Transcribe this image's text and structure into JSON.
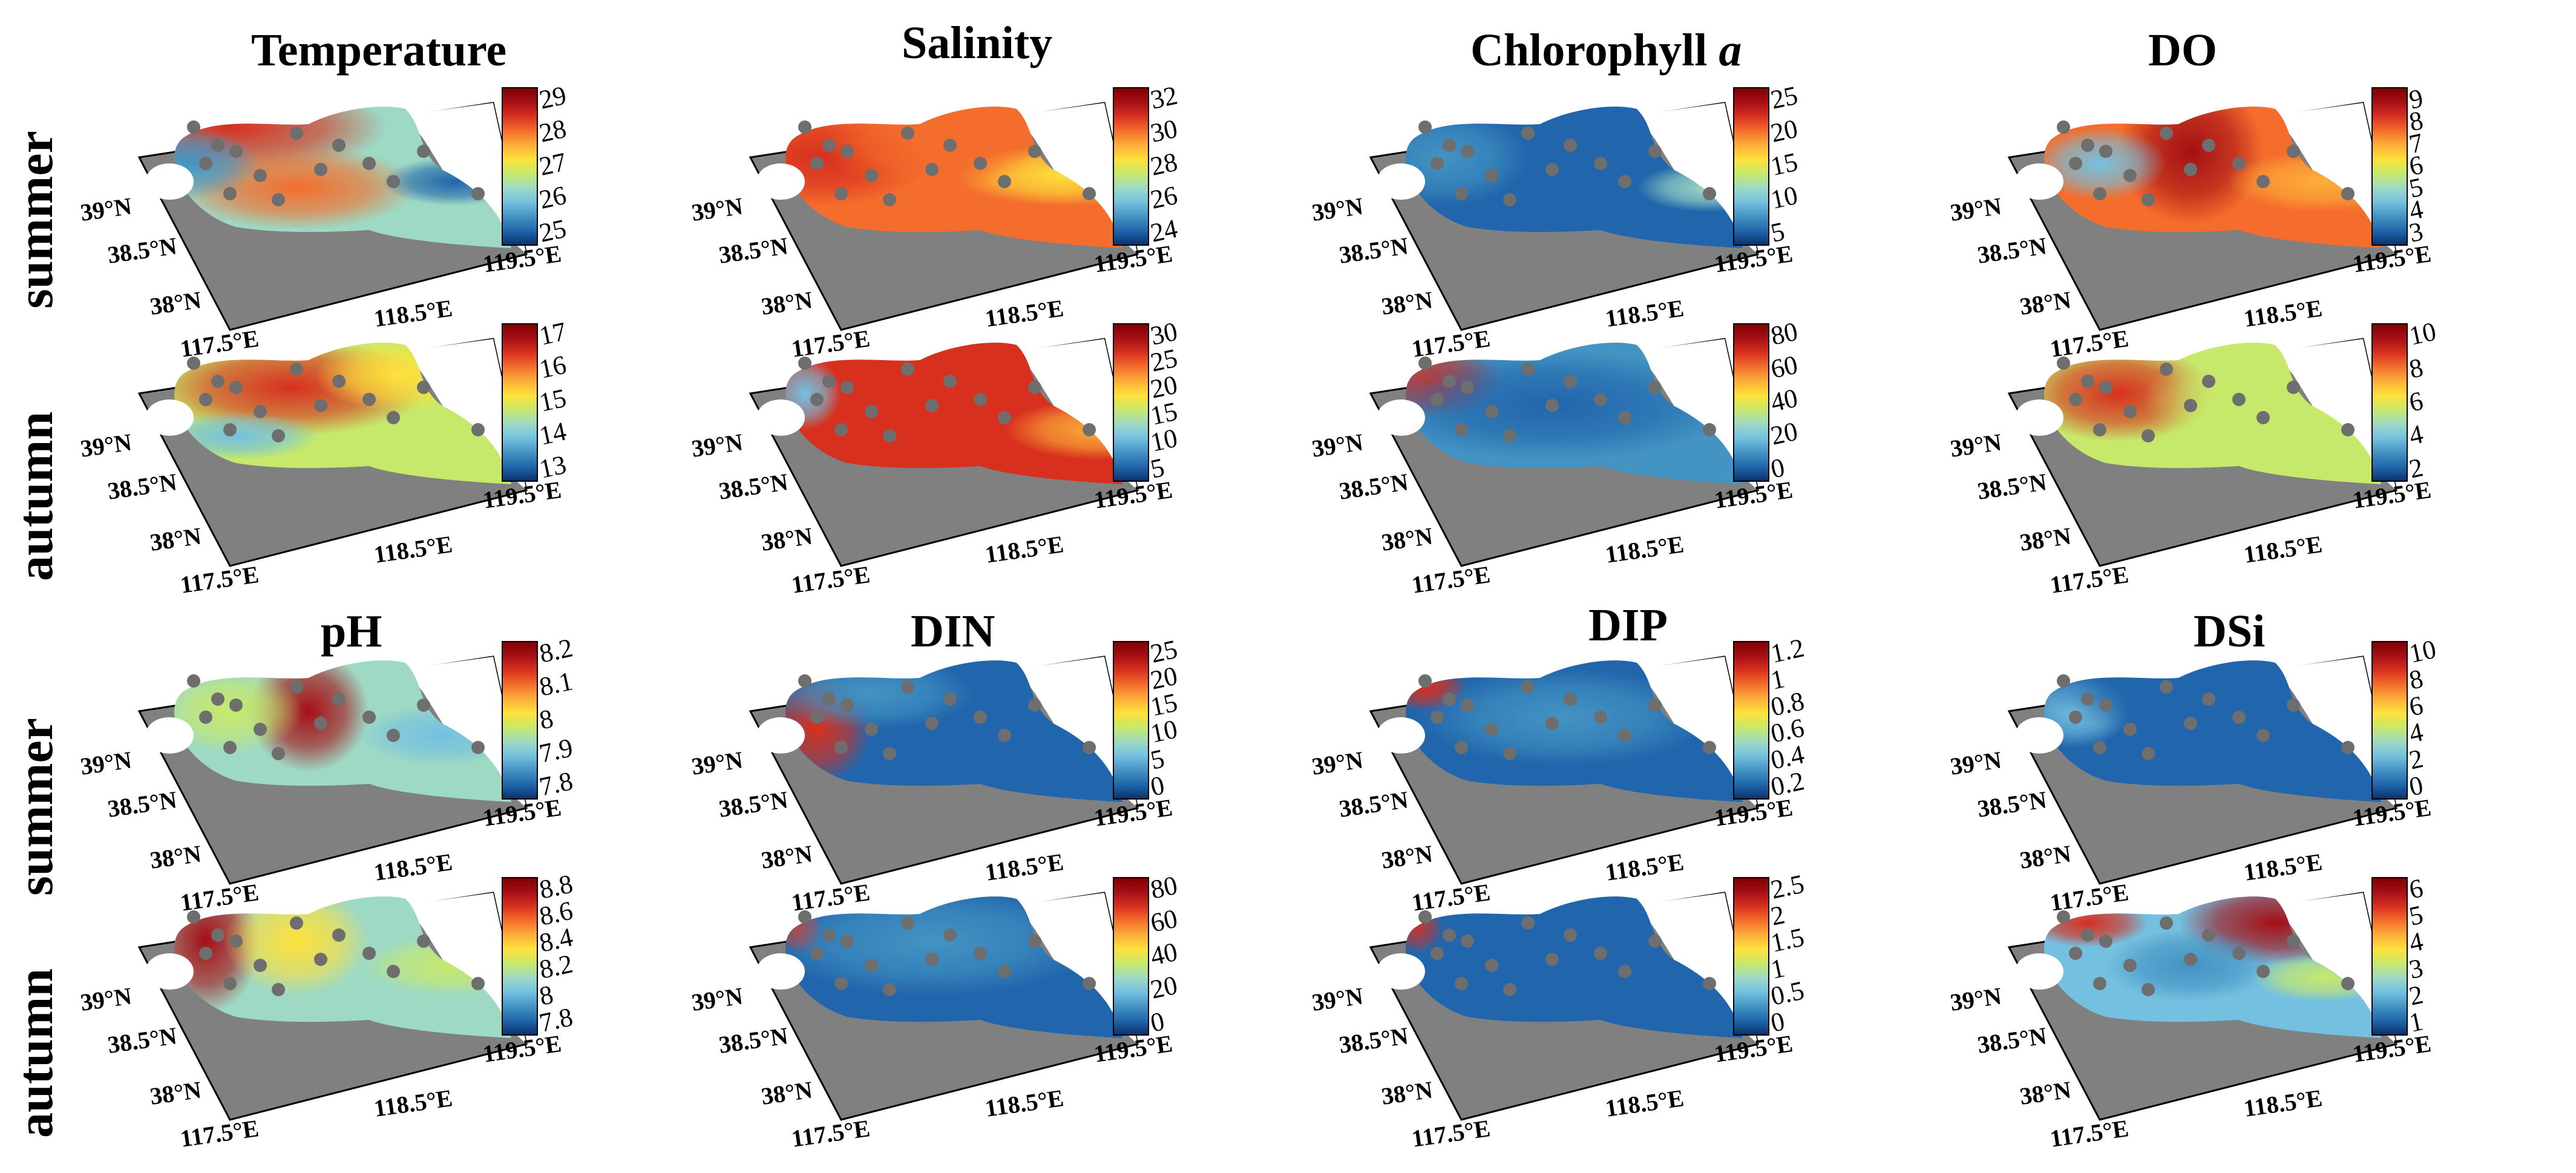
{
  "row_labels": {
    "top_summer": "summer",
    "top_autumn": "autumn",
    "bottom_summer": "summer",
    "bottom_autumn": "autumn"
  },
  "axis_labels": {
    "lat_39": "39°N",
    "lat_385": "38.5°N",
    "lat_38": "38°N",
    "lon_1175": "117.5°E",
    "lon_1185": "118.5°E",
    "lon_1195": "119.5°E"
  },
  "colors": {
    "land": "#808080",
    "station": "#6e6e6e",
    "colormap": [
      "#08306b",
      "#2166ac",
      "#4393c3",
      "#74c0e0",
      "#9ed9c4",
      "#c7e96b",
      "#fee13b",
      "#fdae3a",
      "#f46d2c",
      "#d7301f",
      "#a50f15",
      "#7f0000"
    ]
  },
  "variables": [
    {
      "key": "temperature",
      "title": "Temperature",
      "title_suffix": "",
      "summer": {
        "ticks": [
          "29",
          "28",
          "27",
          "26",
          "25"
        ]
      },
      "autumn": {
        "ticks": [
          "17",
          "16",
          "15",
          "14",
          "13"
        ]
      }
    },
    {
      "key": "salinity",
      "title": "Salinity",
      "title_suffix": "",
      "summer": {
        "ticks": [
          "32",
          "30",
          "28",
          "26",
          "24"
        ]
      },
      "autumn": {
        "ticks": [
          "30",
          "25",
          "20",
          "15",
          "10",
          "5"
        ]
      }
    },
    {
      "key": "chlorophyll",
      "title": "Chlorophyll ",
      "title_suffix": "a",
      "summer": {
        "ticks": [
          "25",
          "20",
          "15",
          "10",
          "5"
        ]
      },
      "autumn": {
        "ticks": [
          "80",
          "60",
          "40",
          "20",
          "0"
        ]
      }
    },
    {
      "key": "do",
      "title": "DO",
      "title_suffix": "",
      "summer": {
        "ticks": [
          "9",
          "8",
          "7",
          "6",
          "5",
          "4",
          "3"
        ]
      },
      "autumn": {
        "ticks": [
          "10",
          "8",
          "6",
          "4",
          "2"
        ]
      }
    },
    {
      "key": "ph",
      "title": "pH",
      "title_suffix": "",
      "summer": {
        "ticks": [
          "8.2",
          "8.1",
          "8",
          "7.9",
          "7.8"
        ]
      },
      "autumn": {
        "ticks": [
          "8.8",
          "8.6",
          "8.4",
          "8.2",
          "8",
          "7.8"
        ]
      }
    },
    {
      "key": "din",
      "title": "DIN",
      "title_suffix": "",
      "summer": {
        "ticks": [
          "25",
          "20",
          "15",
          "10",
          "5",
          "0"
        ]
      },
      "autumn": {
        "ticks": [
          "80",
          "60",
          "40",
          "20",
          "0"
        ]
      }
    },
    {
      "key": "dip",
      "title": "DIP",
      "title_suffix": "",
      "summer": {
        "ticks": [
          "1.2",
          "1",
          "0.8",
          "0.6",
          "0.4",
          "0.2"
        ]
      },
      "autumn": {
        "ticks": [
          "2.5",
          "2",
          "1.5",
          "1",
          "0.5",
          "0"
        ]
      }
    },
    {
      "key": "dsi",
      "title": "DSi",
      "title_suffix": "",
      "summer": {
        "ticks": [
          "10",
          "8",
          "6",
          "4",
          "2",
          "0"
        ]
      },
      "autumn": {
        "ticks": [
          "6",
          "5",
          "4",
          "3",
          "2",
          "1"
        ]
      }
    }
  ]
}
